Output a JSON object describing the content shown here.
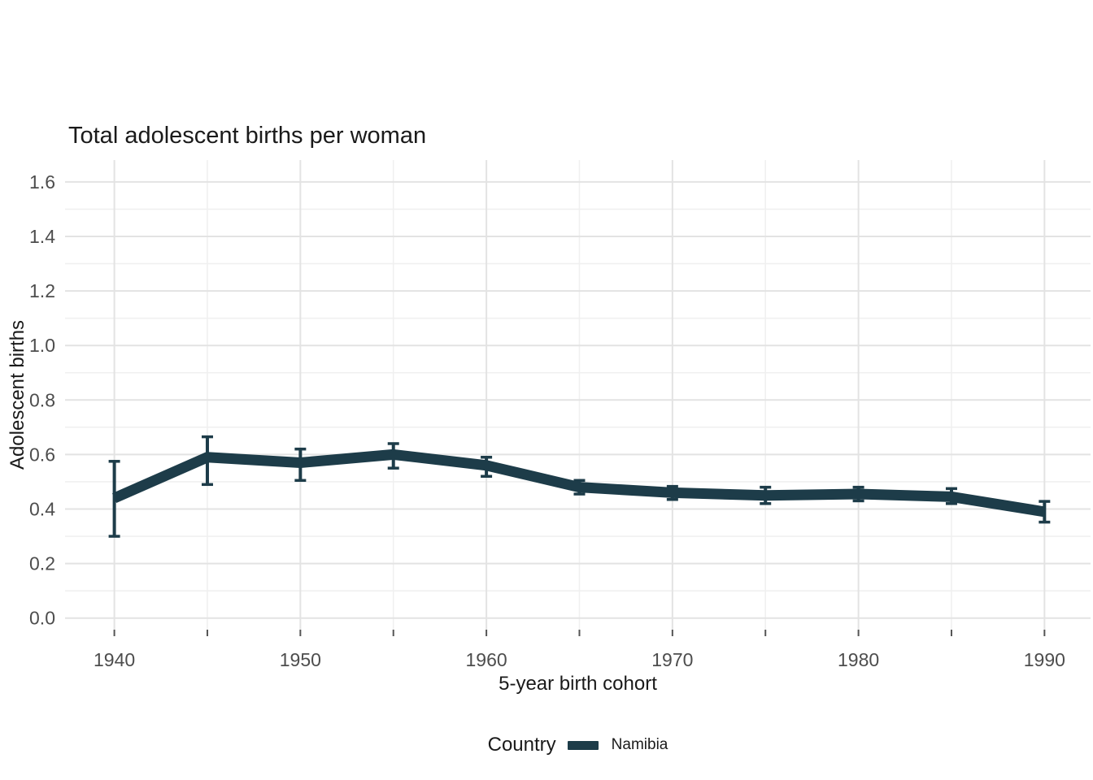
{
  "title": "Total adolescent births per woman",
  "axes": {
    "x_label": "5-year birth cohort",
    "y_label": "Adolescent births",
    "x_tick_labels": [
      "1940",
      "1950",
      "1960",
      "1970",
      "1980",
      "1990"
    ],
    "y_tick_labels": [
      "0.0",
      "0.2",
      "0.4",
      "0.6",
      "0.8",
      "1.0",
      "1.2",
      "1.4",
      "1.6"
    ]
  },
  "legend": {
    "title": "Country",
    "entries": [
      {
        "label": "Namibia",
        "color": "#1d3c49"
      }
    ],
    "position": "bottom"
  },
  "colors": {
    "series": "#1d3c49",
    "grid_major": "#e3e3e3",
    "grid_minor": "#f0f0f0",
    "axis_tick": "#555555",
    "tick_label": "#4d4d4d",
    "text": "#1a1a1a",
    "background": "#ffffff"
  },
  "chart_data": {
    "type": "line",
    "title": "Total adolescent births per woman",
    "xlabel": "5-year birth cohort",
    "ylabel": "Adolescent births",
    "legend_title": "Country",
    "legend_position": "bottom",
    "grid": true,
    "error_bars": true,
    "x": [
      1940,
      1945,
      1950,
      1955,
      1960,
      1965,
      1970,
      1975,
      1980,
      1985,
      1990
    ],
    "series": [
      {
        "name": "Namibia",
        "color": "#1d3c49",
        "values": [
          0.44,
          0.59,
          0.57,
          0.6,
          0.56,
          0.48,
          0.46,
          0.45,
          0.455,
          0.445,
          0.39
        ],
        "lower": [
          0.3,
          0.49,
          0.505,
          0.55,
          0.52,
          0.455,
          0.435,
          0.42,
          0.43,
          0.42,
          0.352
        ],
        "upper": [
          0.575,
          0.665,
          0.62,
          0.64,
          0.59,
          0.505,
          0.483,
          0.48,
          0.48,
          0.475,
          0.428
        ]
      }
    ],
    "xlim": [
      1940,
      1990
    ],
    "ylim": [
      0,
      1.6
    ],
    "x_labeled_ticks": [
      1940,
      1950,
      1960,
      1970,
      1980,
      1990
    ],
    "x_minor_ticks": [
      1945,
      1955,
      1965,
      1975,
      1985
    ],
    "y_major_ticks": [
      0.0,
      0.2,
      0.4,
      0.6,
      0.8,
      1.0,
      1.2,
      1.4,
      1.6
    ],
    "y_minor_ticks": [
      0.1,
      0.3,
      0.5,
      0.7,
      0.9,
      1.1,
      1.3,
      1.5
    ]
  }
}
